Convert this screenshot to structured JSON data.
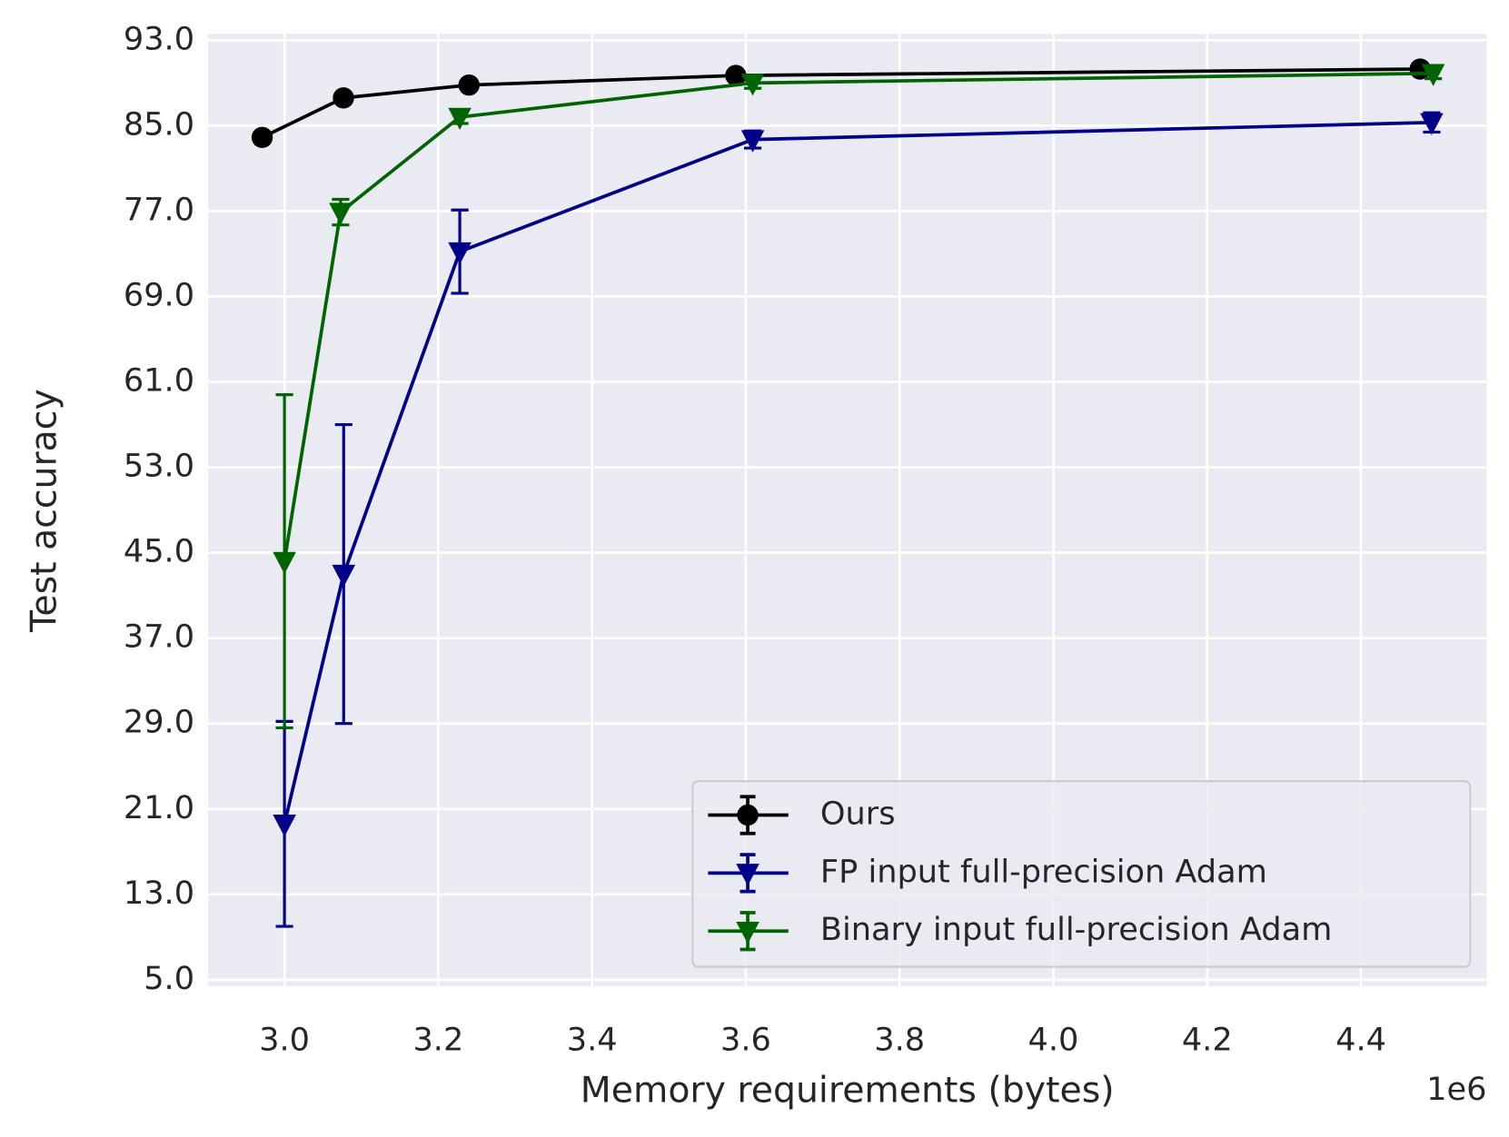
{
  "chart_data": {
    "type": "line",
    "xlabel": "Memory requirements (bytes)",
    "ylabel": "Test accuracy",
    "x_offset_label": "1e6",
    "xlim": [
      2900600,
      4563500
    ],
    "ylim": [
      4.4,
      93.6
    ],
    "xticks": [
      {
        "value": 3000000,
        "label": "3.0"
      },
      {
        "value": 3200000,
        "label": "3.2"
      },
      {
        "value": 3400000,
        "label": "3.4"
      },
      {
        "value": 3600000,
        "label": "3.6"
      },
      {
        "value": 3800000,
        "label": "3.8"
      },
      {
        "value": 4000000,
        "label": "4.0"
      },
      {
        "value": 4200000,
        "label": "4.2"
      },
      {
        "value": 4400000,
        "label": "4.4"
      }
    ],
    "yticks": [
      {
        "value": 5,
        "label": "5.0"
      },
      {
        "value": 13,
        "label": "13.0"
      },
      {
        "value": 21,
        "label": "21.0"
      },
      {
        "value": 29,
        "label": "29.0"
      },
      {
        "value": 37,
        "label": "37.0"
      },
      {
        "value": 45,
        "label": "45.0"
      },
      {
        "value": 53,
        "label": "53.0"
      },
      {
        "value": 61,
        "label": "61.0"
      },
      {
        "value": 69,
        "label": "69.0"
      },
      {
        "value": 77,
        "label": "77.0"
      },
      {
        "value": 85,
        "label": "85.0"
      },
      {
        "value": 93,
        "label": "93.0"
      }
    ],
    "grid": true,
    "legend": "lower right",
    "series": [
      {
        "name": "Ours",
        "color": "#000000",
        "marker": "o",
        "x": [
          2971000,
          3076700,
          3240000,
          3587000,
          4477000
        ],
        "values": [
          83.9,
          87.6,
          88.8,
          89.7,
          90.3
        ],
        "errors": [
          0.3,
          0.3,
          0.3,
          0.3,
          0.3
        ]
      },
      {
        "name": "FP input full-precision Adam",
        "color": "#00008b",
        "marker": "v",
        "x": [
          3000000,
          3077000,
          3228000,
          3609000,
          4492000
        ],
        "values": [
          19.6,
          43.0,
          73.2,
          83.7,
          85.3
        ],
        "errors": [
          9.6,
          14.0,
          3.9,
          0.8,
          0.9
        ]
      },
      {
        "name": "Binary input full-precision Adam",
        "color": "#006400",
        "marker": "v",
        "x": [
          3000000,
          3073000,
          3228000,
          3609000,
          4494000
        ],
        "values": [
          44.2,
          76.9,
          85.8,
          89.0,
          89.9
        ],
        "errors": [
          15.6,
          1.2,
          0.6,
          0.5,
          0.5
        ]
      }
    ]
  }
}
